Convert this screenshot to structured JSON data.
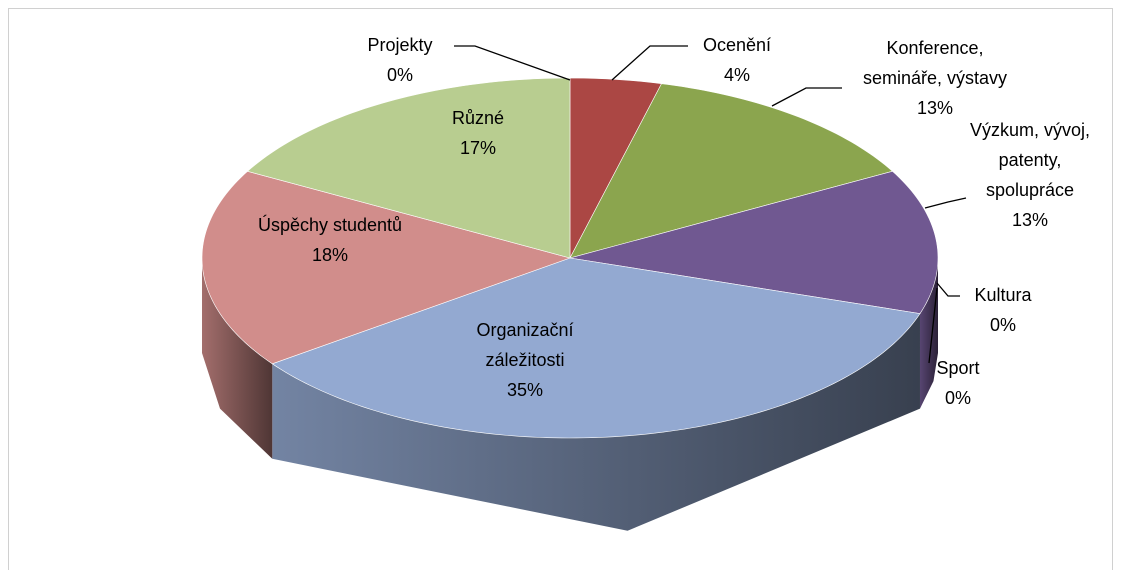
{
  "chart_data": {
    "type": "pie3d",
    "categories": [
      "Ocenění",
      "Konference, semináře, výstavy",
      "Výzkum, vývoj, patenty, spolupráce",
      "Kultura",
      "Sport",
      "Organizační záležitosti",
      "Úspěchy studentů",
      "Různé",
      "Projekty"
    ],
    "values": [
      4,
      13,
      13,
      0,
      0,
      35,
      18,
      17,
      0
    ],
    "value_labels": [
      "4%",
      "13%",
      "13%",
      "0%",
      "0%",
      "35%",
      "18%",
      "17%",
      "0%"
    ],
    "colors": [
      "#ab4744",
      "#8ba54e",
      "#705891",
      "#3f8fc4",
      "#e58f3c",
      "#93a9d1",
      "#d18d8b",
      "#b8cd90",
      "#5e8fbd"
    ]
  }
}
